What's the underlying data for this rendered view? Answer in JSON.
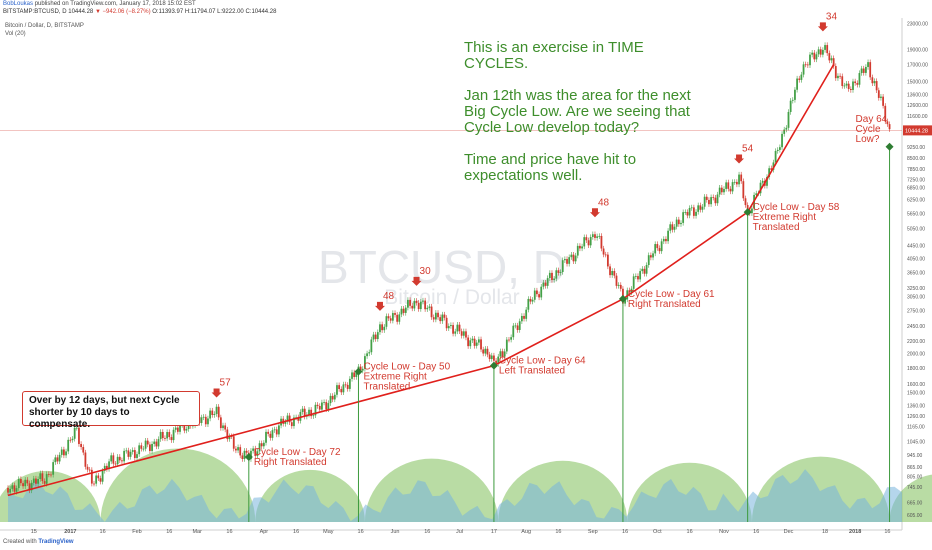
{
  "header": {
    "author": "BobLoukas",
    "published": "published on TradingView.com, January 17, 2018 15:02 EST",
    "symbol": "BITSTAMP:BTCUSD, D",
    "last": "10444.28",
    "change": "▼ −942.06 (−8.27%)",
    "ohlc": "O:11393.97 H:11794.07 L:9222.00 C:10444.28"
  },
  "legend": {
    "line1": "Bitcoin / Dollar, D, BITSTAMP",
    "line2": "Vol (20)"
  },
  "watermark": {
    "symbol": "BTCUSD, D",
    "name": "Bitcoin / Dollar"
  },
  "note": {
    "p1": "This is an exercise in TIME CYCLES.",
    "p2": "Jan 12th was the area for the next Big Cycle Low.  Are we seeing that Cycle Low develop today?",
    "p3": "Time and price have hit to expectations well."
  },
  "callout": "Over by 12 days, but next Cycle shorter by 10 days to compensate.",
  "footer": {
    "created": "Created with",
    "brand": "TradingView"
  },
  "colors": {
    "up": "#43a047",
    "down": "#d23a2f",
    "trend": "#e0201c",
    "cycle_fill": "#7fbf5a",
    "volume": "#78b4dc",
    "text_green": "#3e8e2c"
  },
  "chart_data": {
    "type": "candlestick",
    "x_unit": "date",
    "y_scale": "log",
    "ylim": [
      575,
      24000
    ],
    "y_ticks": [
      "23000.00",
      "19000.00",
      "17000.00",
      "15000.00",
      "13600.00",
      "12600.00",
      "11600.00",
      "10444.28",
      "9250.00",
      "8500.00",
      "7850.00",
      "7250.00",
      "6850.00",
      "6250.00",
      "5650.00",
      "5050.00",
      "4450.00",
      "4050.00",
      "3650.00",
      "3250.00",
      "3050.00",
      "2750.00",
      "2450.00",
      "2200.00",
      "2000.00",
      "1800.00",
      "1600.00",
      "1500.00",
      "1360.00",
      "1260.00",
      "1165.00",
      "1045.00",
      "945.00",
      "865.00",
      "805.00",
      "745.00",
      "665.00",
      "605.00"
    ],
    "x_ticks": [
      "15",
      "2017",
      "16",
      "Feb",
      "16",
      "Mar",
      "16",
      "Apr",
      "16",
      "May",
      "16",
      "Jun",
      "16",
      "Jul",
      "17",
      "Aug",
      "16",
      "Sep",
      "16",
      "Oct",
      "16",
      "Nov",
      "16",
      "Dec",
      "18",
      "2018",
      "16"
    ],
    "price_points": [
      {
        "x": "2016-12-03",
        "y": 740
      },
      {
        "x": "2016-12-20",
        "y": 790
      },
      {
        "x": "2016-12-28",
        "y": 960
      },
      {
        "x": "2017-01-04",
        "y": 1130
      },
      {
        "x": "2017-01-11",
        "y": 760
      },
      {
        "x": "2017-01-20",
        "y": 900
      },
      {
        "x": "2017-02-06",
        "y": 1010
      },
      {
        "x": "2017-02-24",
        "y": 1180
      },
      {
        "x": "2017-03-10",
        "y": 1290
      },
      {
        "x": "2017-03-18",
        "y": 1000
      },
      {
        "x": "2017-03-25",
        "y": 930
      },
      {
        "x": "2017-04-08",
        "y": 1180
      },
      {
        "x": "2017-04-28",
        "y": 1350
      },
      {
        "x": "2017-05-15",
        "y": 1750
      },
      {
        "x": "2017-05-25",
        "y": 2450
      },
      {
        "x": "2017-06-11",
        "y": 2950
      },
      {
        "x": "2017-06-25",
        "y": 2500
      },
      {
        "x": "2017-07-15",
        "y": 2000
      },
      {
        "x": "2017-07-17",
        "y": 1830
      },
      {
        "x": "2017-08-05",
        "y": 3100
      },
      {
        "x": "2017-08-22",
        "y": 4100
      },
      {
        "x": "2017-09-02",
        "y": 4900
      },
      {
        "x": "2017-09-15",
        "y": 3000
      },
      {
        "x": "2017-09-30",
        "y": 4300
      },
      {
        "x": "2017-10-12",
        "y": 5500
      },
      {
        "x": "2017-10-22",
        "y": 6000
      },
      {
        "x": "2017-11-08",
        "y": 7300
      },
      {
        "x": "2017-11-12",
        "y": 5700
      },
      {
        "x": "2017-11-25",
        "y": 8500
      },
      {
        "x": "2017-12-07",
        "y": 16500
      },
      {
        "x": "2017-12-17",
        "y": 19400
      },
      {
        "x": "2017-12-28",
        "y": 14000
      },
      {
        "x": "2018-01-07",
        "y": 16800
      },
      {
        "x": "2018-01-12",
        "y": 13500
      },
      {
        "x": "2018-01-17",
        "y": 10444
      }
    ],
    "peaks": [
      {
        "x": "2017-01-04",
        "label": ""
      },
      {
        "x": "2017-03-10",
        "label": "57"
      },
      {
        "x": "2017-05-25",
        "label": "48"
      },
      {
        "x": "2017-06-11",
        "label": "30"
      },
      {
        "x": "2017-09-02",
        "label": "48"
      },
      {
        "x": "2017-11-08",
        "label": "54"
      },
      {
        "x": "2017-12-17",
        "label": "34"
      }
    ],
    "cycle_lows": [
      {
        "x": "2017-03-25",
        "y": 930,
        "label": "Cycle Low - Day 72\nRight Translated"
      },
      {
        "x": "2017-05-15",
        "y": 1750,
        "label": "Cycle Low - Day 50\nExtreme Right\nTranslated"
      },
      {
        "x": "2017-07-17",
        "y": 1830,
        "label": "Cycle Low - Day 64\nLeft Translated"
      },
      {
        "x": "2017-09-15",
        "y": 3000,
        "label": "Cycle Low - Day 61\nRight Translated"
      },
      {
        "x": "2017-11-12",
        "y": 5700,
        "label": "Cycle Low - Day 58\nExtreme Right\nTranslated"
      },
      {
        "x": "2018-01-17",
        "y": 9250,
        "label": "Day 64\nCycle\nLow?"
      }
    ],
    "trendline": [
      {
        "x": "2016-12-03",
        "y": 700
      },
      {
        "x": "2017-07-17",
        "y": 1830
      },
      {
        "x": "2017-09-15",
        "y": 3000
      },
      {
        "x": "2017-11-12",
        "y": 5700
      },
      {
        "x": "2017-12-22",
        "y": 17000
      }
    ],
    "cycle_arcs": [
      [
        "2016-11-26",
        "2017-01-15"
      ],
      [
        "2017-01-15",
        "2017-03-28"
      ],
      [
        "2017-03-28",
        "2017-05-18"
      ],
      [
        "2017-05-18",
        "2017-07-19"
      ],
      [
        "2017-07-19",
        "2017-09-17"
      ],
      [
        "2017-09-17",
        "2017-11-14"
      ],
      [
        "2017-11-14",
        "2018-01-17"
      ],
      [
        "2018-01-17",
        "2018-03-05"
      ]
    ]
  }
}
